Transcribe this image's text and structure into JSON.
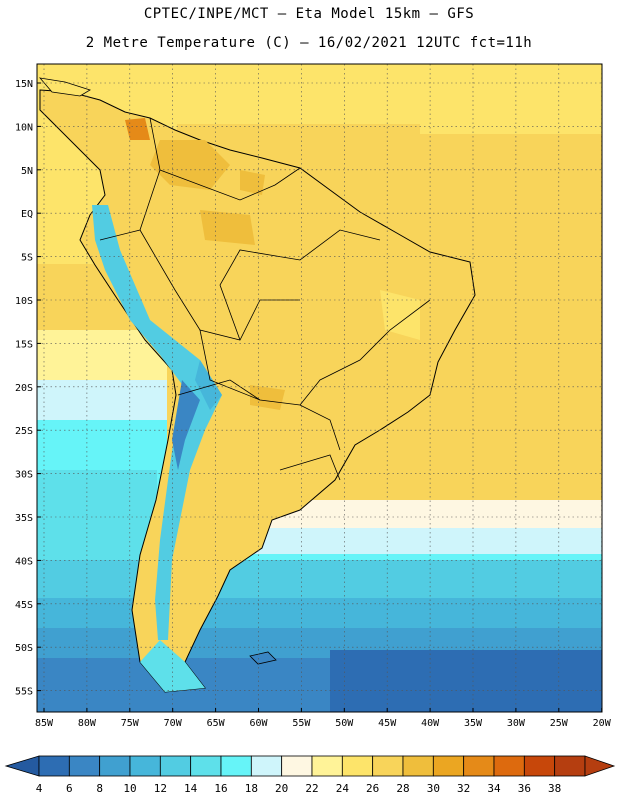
{
  "header": {
    "title": "CPTEC/INPE/MCT –  Eta Model 15km – GFS",
    "subtitle": "2 Metre Temperature (C) – 16/02/2021 12UTC fct=11h"
  },
  "map": {
    "lat_labels": [
      "15N",
      "10N",
      "5N",
      "EQ",
      "5S",
      "10S",
      "15S",
      "20S",
      "25S",
      "30S",
      "35S",
      "40S",
      "45S",
      "50S",
      "55S"
    ],
    "lon_labels": [
      "85W",
      "80W",
      "75W",
      "70W",
      "65W",
      "60W",
      "55W",
      "50W",
      "45W",
      "40W",
      "35W",
      "30W",
      "25W",
      "20W"
    ],
    "grid": "dotted"
  },
  "colorbar": {
    "ticks": [
      "4",
      "6",
      "8",
      "10",
      "12",
      "14",
      "16",
      "18",
      "20",
      "22",
      "24",
      "26",
      "28",
      "30",
      "32",
      "34",
      "36",
      "38"
    ],
    "colors": [
      "#2d6db3",
      "#3a86c4",
      "#40a0d0",
      "#46b6da",
      "#52cce2",
      "#5ee0ea",
      "#66f4f8",
      "#cff5fb",
      "#fef7e2",
      "#fff398",
      "#fde46a",
      "#f8d45a",
      "#efbe3c",
      "#eba622",
      "#e58a18",
      "#dd6a0e",
      "#c7470a",
      "#b53e10"
    ],
    "low_arrow_color": "#245aa0",
    "high_arrow_color": "#b53e10"
  }
}
